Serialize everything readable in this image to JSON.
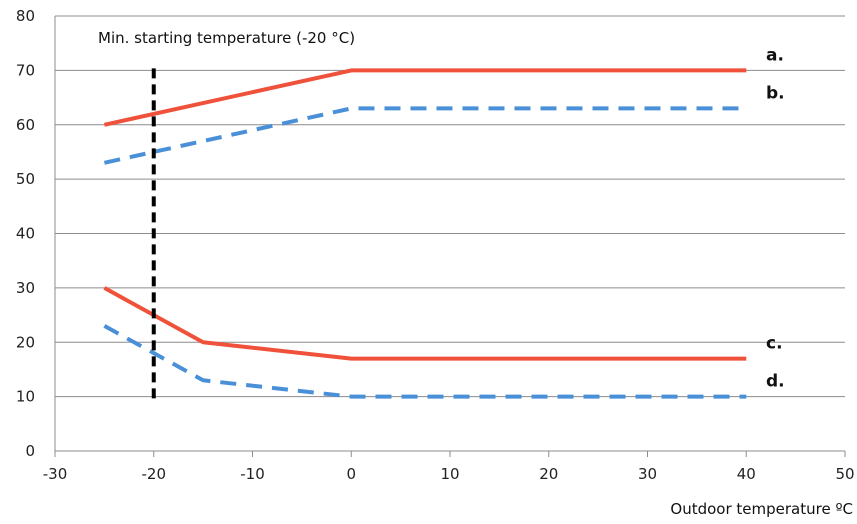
{
  "chart_data": {
    "type": "line",
    "xlabel": "Outdoor temperature ºC",
    "ylabel": "",
    "xlim": [
      -30,
      50
    ],
    "ylim": [
      0,
      80
    ],
    "x_ticks": [
      -30,
      -20,
      -10,
      0,
      10,
      20,
      30,
      40,
      50
    ],
    "y_ticks": [
      0,
      10,
      20,
      30,
      40,
      50,
      60,
      70,
      80
    ],
    "grid": "horizontal",
    "series": [
      {
        "name": "a.",
        "style": "solid",
        "color": "#f0513a",
        "points": [
          [
            -25,
            60
          ],
          [
            0,
            70
          ],
          [
            40,
            70
          ]
        ]
      },
      {
        "name": "b.",
        "style": "dashed",
        "color": "#4a90d9",
        "points": [
          [
            -25,
            53
          ],
          [
            -20,
            55
          ],
          [
            -10,
            59
          ],
          [
            0,
            63
          ],
          [
            40,
            63
          ]
        ]
      },
      {
        "name": "c.",
        "style": "solid",
        "color": "#f0513a",
        "points": [
          [
            -25,
            30
          ],
          [
            -15,
            20
          ],
          [
            0,
            17
          ],
          [
            40,
            17
          ]
        ]
      },
      {
        "name": "d.",
        "style": "dashed",
        "color": "#4a90d9",
        "points": [
          [
            -25,
            23
          ],
          [
            -20,
            18
          ],
          [
            -15,
            13
          ],
          [
            0,
            10
          ],
          [
            40,
            10
          ]
        ]
      }
    ],
    "annotation": {
      "text": "Min. starting temperature (-20 °C)",
      "x": -20,
      "y_range": [
        10,
        70
      ],
      "color": "#000000"
    }
  }
}
